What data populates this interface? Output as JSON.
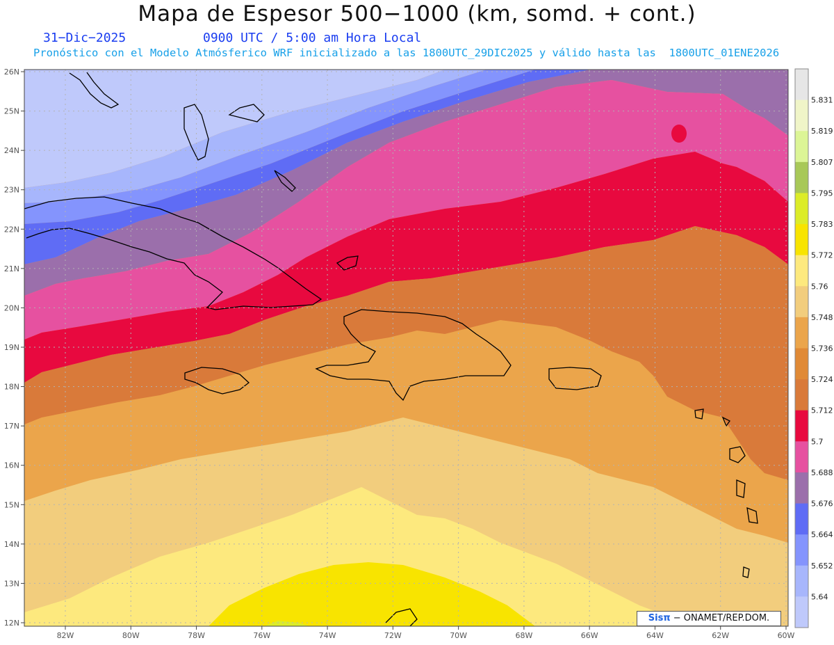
{
  "header": {
    "title": "Mapa de Espesor 500−1000 (km, somd. + cont.)",
    "date": "31−Dic−2025",
    "utc_time": "0900 UTC / 5:00 am Hora Local",
    "subtitle": "Pronóstico con el Modelo Atmósferico WRF inicializado a las 1800UTC_29DIC2025 y válido hasta las  1800UTC_01ENE2026"
  },
  "map": {
    "lat_labels": [
      "26N",
      "25N",
      "24N",
      "23N",
      "22N",
      "21N",
      "20N",
      "19N",
      "18N",
      "17N",
      "16N",
      "15N",
      "14N",
      "13N",
      "12N"
    ],
    "lon_labels": [
      "82W",
      "80W",
      "78W",
      "76W",
      "74W",
      "72W",
      "70W",
      "68W",
      "66W",
      "64W",
      "62W",
      "60W"
    ],
    "islands": [
      "Cuba",
      "Jamaica",
      "La Española",
      "Puerto Rico",
      "Bahamas",
      "Antillas Menores"
    ],
    "grid": "dotted"
  },
  "colorbar": {
    "labels": [
      "5.831",
      "5.819",
      "5.807",
      "5.795",
      "5.783",
      "5.772",
      "5.76",
      "5.748",
      "5.736",
      "5.724",
      "5.712",
      "5.7",
      "5.688",
      "5.676",
      "5.664",
      "5.652",
      "5.64"
    ],
    "colors": [
      "#e6e6e6",
      "#f0f5c8",
      "#dcf596",
      "#a8c858",
      "#dcec28",
      "#f8e400",
      "#fde97e",
      "#f2cd7d",
      "#eba54b",
      "#e08a36",
      "#d97a3a",
      "#e8093f",
      "#e651a0",
      "#9b6fab",
      "#5f6cf5",
      "#8494fd",
      "#a7b6fc",
      "#bfc9fb"
    ]
  },
  "credit": {
    "logo": "Sisπ",
    "text": " − ONAMET/REP.DOM."
  }
}
